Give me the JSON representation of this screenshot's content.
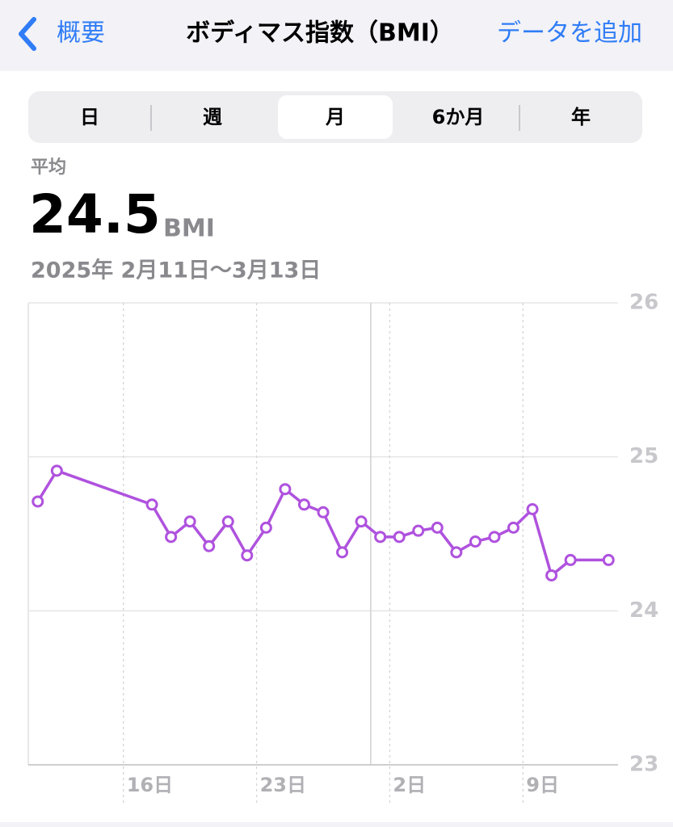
{
  "nav": {
    "back": "概要",
    "title": "ボディマス指数（BMI）",
    "action": "データを追加"
  },
  "segments": {
    "items": [
      "日",
      "週",
      "月",
      "6か月",
      "年"
    ],
    "selected": 2
  },
  "summary": {
    "label": "平均",
    "value": "24.5",
    "unit": "BMI",
    "range": "2025年 2月11日〜3月13日"
  },
  "chart_data": {
    "type": "line",
    "color": "#af52de",
    "x": [
      "2025-02-11",
      "2025-02-12",
      "2025-02-17",
      "2025-02-18",
      "2025-02-19",
      "2025-02-20",
      "2025-02-21",
      "2025-02-22",
      "2025-02-23",
      "2025-02-24",
      "2025-02-25",
      "2025-02-26",
      "2025-02-27",
      "2025-02-28",
      "2025-03-01",
      "2025-03-02",
      "2025-03-03",
      "2025-03-04",
      "2025-03-05",
      "2025-03-06",
      "2025-03-07",
      "2025-03-08",
      "2025-03-09",
      "2025-03-10",
      "2025-03-11",
      "2025-03-13"
    ],
    "values": [
      24.71,
      24.91,
      24.69,
      24.48,
      24.58,
      24.42,
      24.58,
      24.36,
      24.54,
      24.79,
      24.69,
      24.64,
      24.38,
      24.58,
      24.48,
      24.48,
      24.52,
      24.54,
      24.38,
      24.45,
      24.48,
      24.54,
      24.66,
      24.23,
      24.33,
      24.33
    ],
    "xlim": [
      "2025-02-11",
      "2025-03-14"
    ],
    "xticks": [
      {
        "value": "2025-02-16",
        "label": "16日"
      },
      {
        "value": "2025-02-23",
        "label": "23日"
      },
      {
        "value": "2025-03-02",
        "label": "2日"
      },
      {
        "value": "2025-03-09",
        "label": "9日"
      }
    ],
    "month_lines": [
      "2025-03-01"
    ],
    "ylim": [
      23,
      26
    ],
    "yticks": [
      23,
      24,
      25,
      26
    ],
    "grid": true
  }
}
